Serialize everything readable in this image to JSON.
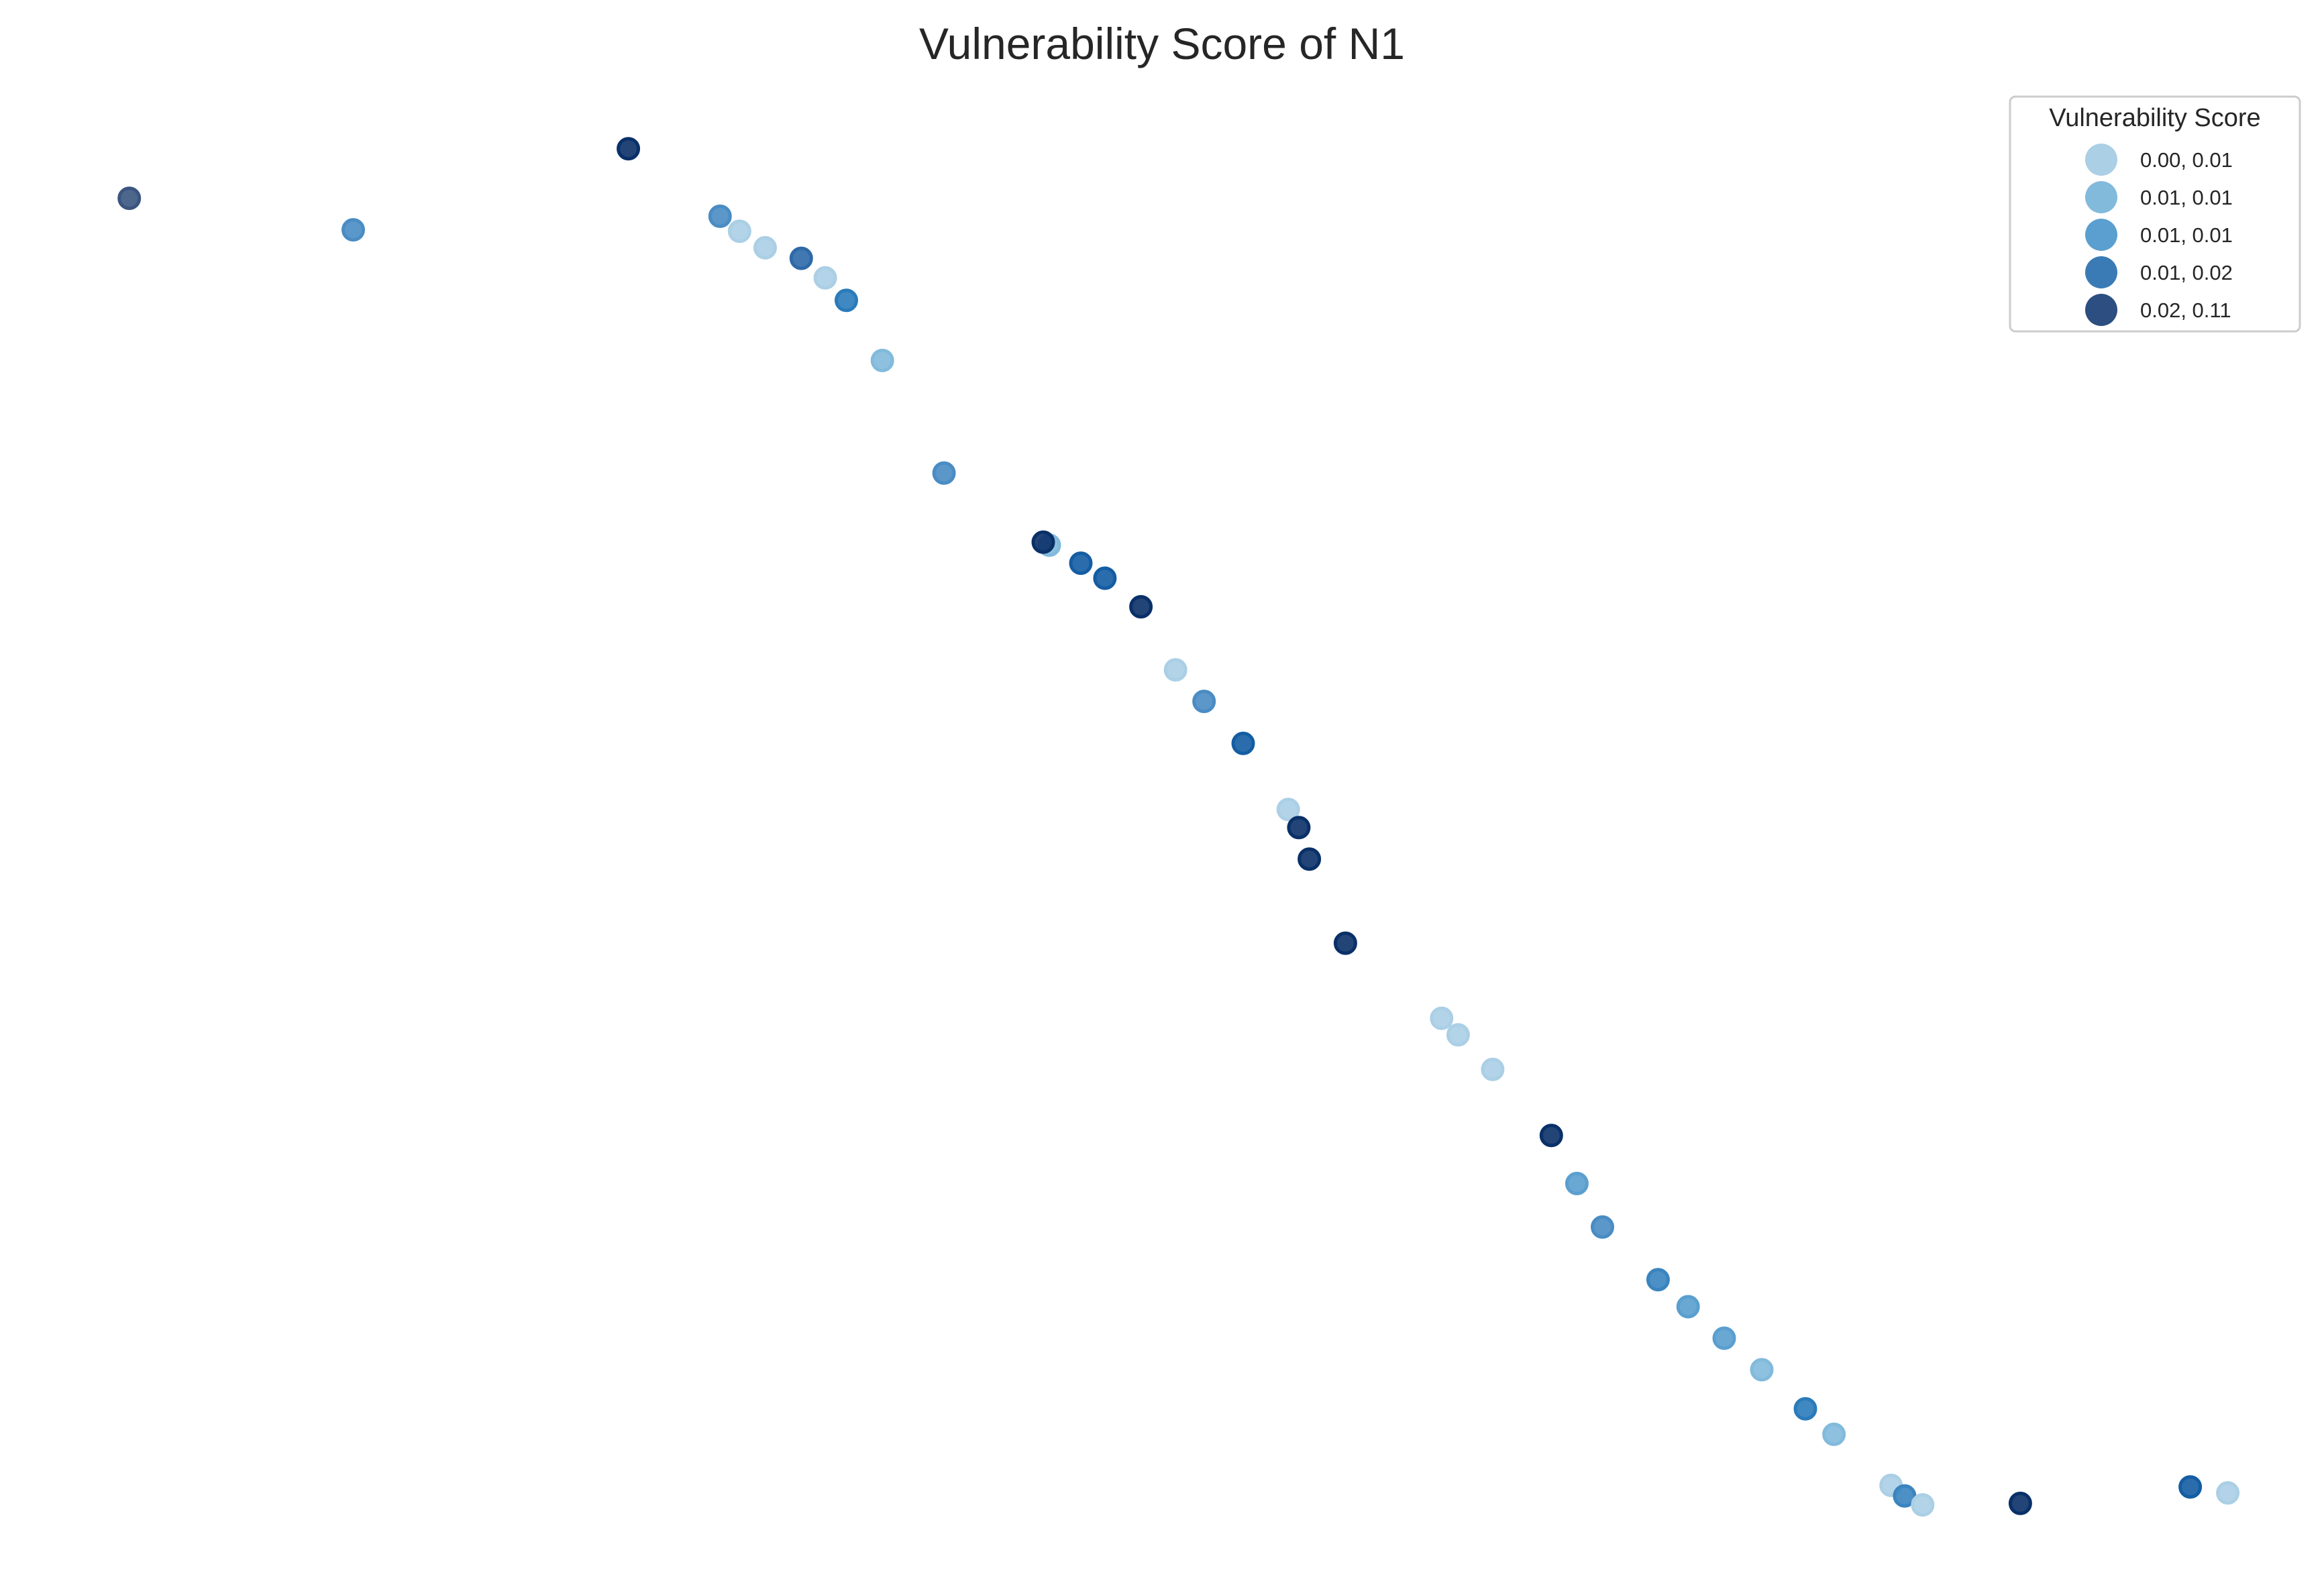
{
  "chart_data": {
    "type": "scatter",
    "title": "Vulnerability Score of N1",
    "xlabel": "",
    "ylabel": "",
    "grid": false,
    "axes_visible": false,
    "xlim": [
      0,
      1546
    ],
    "ylim": [
      0,
      1050
    ],
    "legend": {
      "title": "Vulnerability Score",
      "position": "top-right",
      "entries": [
        {
          "label": "0.00, 0.01",
          "color": "#abcfe5"
        },
        {
          "label": "0.01, 0.01",
          "color": "#82badb"
        },
        {
          "label": "0.01, 0.01",
          "color": "#5a9fcf"
        },
        {
          "label": "0.01, 0.02",
          "color": "#3a7bb5"
        },
        {
          "label": "0.02, 0.11",
          "color": "#2c4e80"
        }
      ]
    },
    "points": [
      {
        "x": 86,
        "y": 918,
        "color": "#3a5580"
      },
      {
        "x": 235,
        "y": 897,
        "color": "#4a8cc4"
      },
      {
        "x": 418,
        "y": 951,
        "color": "#0a3068"
      },
      {
        "x": 479,
        "y": 906,
        "color": "#4a8cc4"
      },
      {
        "x": 492,
        "y": 896,
        "color": "#abcfe5"
      },
      {
        "x": 509,
        "y": 885,
        "color": "#abcfe5"
      },
      {
        "x": 533,
        "y": 878,
        "color": "#2e69a8"
      },
      {
        "x": 549,
        "y": 865,
        "color": "#abcfe5"
      },
      {
        "x": 563,
        "y": 850,
        "color": "#2b7bba"
      },
      {
        "x": 587,
        "y": 810,
        "color": "#82badb"
      },
      {
        "x": 628,
        "y": 735,
        "color": "#4a8cc4"
      },
      {
        "x": 698,
        "y": 687,
        "color": "#82badb"
      },
      {
        "x": 694,
        "y": 689,
        "color": "#0a3068"
      },
      {
        "x": 719,
        "y": 675,
        "color": "#145da3"
      },
      {
        "x": 735,
        "y": 665,
        "color": "#145da3"
      },
      {
        "x": 759,
        "y": 646,
        "color": "#0a3068"
      },
      {
        "x": 782,
        "y": 604,
        "color": "#abcfe5"
      },
      {
        "x": 801,
        "y": 583,
        "color": "#4a8cc4"
      },
      {
        "x": 827,
        "y": 555,
        "color": "#145da3"
      },
      {
        "x": 857,
        "y": 511,
        "color": "#abcfe5"
      },
      {
        "x": 864,
        "y": 499,
        "color": "#0a3068"
      },
      {
        "x": 871,
        "y": 478,
        "color": "#0a3068"
      },
      {
        "x": 895,
        "y": 422,
        "color": "#0a3068"
      },
      {
        "x": 959,
        "y": 372,
        "color": "#abcfe5"
      },
      {
        "x": 970,
        "y": 361,
        "color": "#abcfe5"
      },
      {
        "x": 993,
        "y": 338,
        "color": "#abcfe5"
      },
      {
        "x": 1032,
        "y": 294,
        "color": "#0a3068"
      },
      {
        "x": 1049,
        "y": 262,
        "color": "#5a9fcf"
      },
      {
        "x": 1066,
        "y": 233,
        "color": "#4a8cc4"
      },
      {
        "x": 1103,
        "y": 198,
        "color": "#3a84bf"
      },
      {
        "x": 1123,
        "y": 180,
        "color": "#5a9fcf"
      },
      {
        "x": 1147,
        "y": 159,
        "color": "#5a9fcf"
      },
      {
        "x": 1172,
        "y": 138,
        "color": "#82badb"
      },
      {
        "x": 1201,
        "y": 112,
        "color": "#2b7bba"
      },
      {
        "x": 1220,
        "y": 95,
        "color": "#82badb"
      },
      {
        "x": 1258,
        "y": 61,
        "color": "#abcfe5"
      },
      {
        "x": 1267,
        "y": 54,
        "color": "#3a84bf"
      },
      {
        "x": 1279,
        "y": 48,
        "color": "#abcfe5"
      },
      {
        "x": 1344,
        "y": 49,
        "color": "#0a3068"
      },
      {
        "x": 1457,
        "y": 60,
        "color": "#145da3"
      },
      {
        "x": 1482,
        "y": 56,
        "color": "#abcfe5"
      }
    ]
  }
}
